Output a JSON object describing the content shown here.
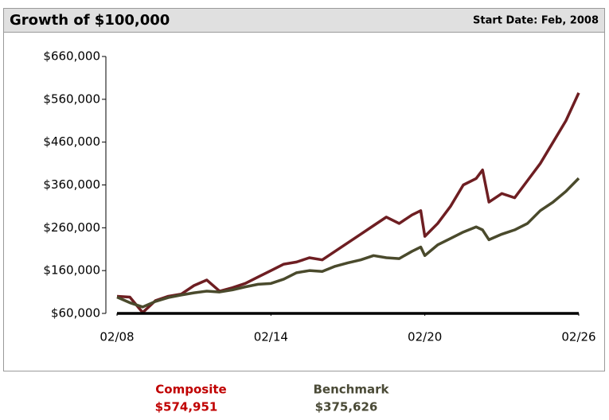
{
  "chart_data": {
    "type": "line",
    "title": "Growth of $100,000",
    "subtitle": "Start Date: Feb, 2008",
    "x": [
      2008.08,
      2008.58,
      2009.08,
      2009.58,
      2010.08,
      2010.58,
      2011.08,
      2011.58,
      2012.08,
      2012.58,
      2013.08,
      2013.58,
      2014.08,
      2014.58,
      2015.08,
      2015.58,
      2016.08,
      2016.58,
      2017.08,
      2017.58,
      2018.08,
      2018.58,
      2019.08,
      2019.58,
      2019.92,
      2020.08,
      2020.58,
      2021.08,
      2021.58,
      2022.08,
      2022.33,
      2022.58,
      2023.08,
      2023.58,
      2024.08,
      2024.58,
      2025.08,
      2025.58,
      2026.08
    ],
    "series": [
      {
        "name": "Composite",
        "color": "#6e1e22",
        "label_color": "#c00000",
        "values": [
          100000,
          98000,
          62000,
          90000,
          100000,
          105000,
          125000,
          138000,
          112000,
          120000,
          130000,
          145000,
          160000,
          175000,
          180000,
          190000,
          185000,
          205000,
          225000,
          245000,
          265000,
          285000,
          270000,
          290000,
          300000,
          240000,
          270000,
          310000,
          360000,
          375000,
          395000,
          320000,
          340000,
          330000,
          370000,
          410000,
          460000,
          510000,
          574951
        ],
        "value_labels": [
          null,
          null,
          null,
          null,
          null,
          null,
          null,
          null,
          null,
          null,
          null,
          null,
          null,
          null,
          null,
          null,
          null,
          null,
          null,
          null,
          null,
          null,
          null,
          null,
          null,
          null,
          null,
          null,
          null,
          null,
          null,
          null,
          null,
          null,
          null,
          null,
          null,
          null,
          "$574,951"
        ]
      },
      {
        "name": "Benchmark",
        "color": "#4a4a2c",
        "label_color": "#4a4a36",
        "values": [
          98000,
          85000,
          75000,
          88000,
          97000,
          103000,
          108000,
          112000,
          110000,
          115000,
          122000,
          128000,
          130000,
          140000,
          155000,
          160000,
          158000,
          170000,
          178000,
          185000,
          195000,
          190000,
          188000,
          205000,
          215000,
          195000,
          220000,
          235000,
          250000,
          262000,
          255000,
          232000,
          245000,
          255000,
          270000,
          300000,
          320000,
          345000,
          375626
        ],
        "value_labels": [
          null,
          null,
          null,
          null,
          null,
          null,
          null,
          null,
          null,
          null,
          null,
          null,
          null,
          null,
          null,
          null,
          null,
          null,
          null,
          null,
          null,
          null,
          null,
          null,
          null,
          null,
          null,
          null,
          null,
          null,
          null,
          null,
          null,
          null,
          null,
          null,
          null,
          null,
          "$375,626"
        ]
      }
    ],
    "xlim": [
      2008.08,
      2026.08
    ],
    "xticks": [
      {
        "value": 2008.08,
        "label": "02/08"
      },
      {
        "value": 2014.08,
        "label": "02/14"
      },
      {
        "value": 2020.08,
        "label": "02/20"
      },
      {
        "value": 2026.08,
        "label": "02/26"
      }
    ],
    "ylim": [
      60000,
      660000
    ],
    "yticks": [
      {
        "value": 60000,
        "label": "$60,000"
      },
      {
        "value": 160000,
        "label": "$160,000"
      },
      {
        "value": 260000,
        "label": "$260,000"
      },
      {
        "value": 360000,
        "label": "$360,000"
      },
      {
        "value": 460000,
        "label": "$460,000"
      },
      {
        "value": 560000,
        "label": "$560,000"
      },
      {
        "value": 660000,
        "label": "$660,000"
      }
    ],
    "grid": false
  }
}
